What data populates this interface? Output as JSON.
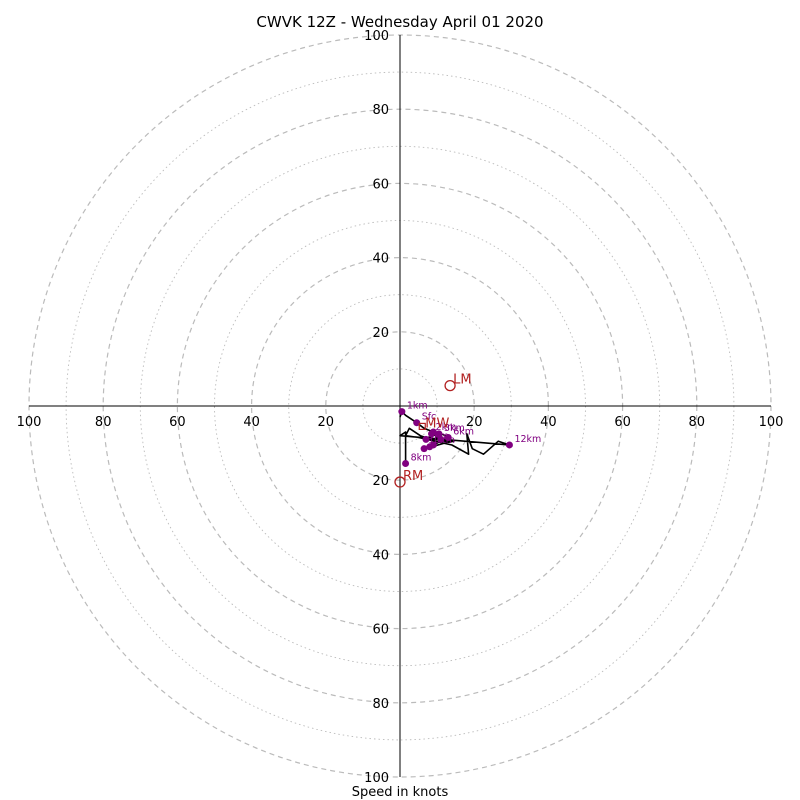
{
  "chart_data": {
    "type": "scatter",
    "title": "CWVK 12Z - Wednesday April 01 2020",
    "xlabel": "Speed in knots",
    "ylabel": "",
    "xlim": [
      -100,
      100
    ],
    "ylim": [
      -100,
      100
    ],
    "grid": "dashed rings every 20 knots, dotted rings at 10-knot midpoints",
    "axis_ticks": {
      "left": [
        "100",
        "80",
        "60",
        "40",
        "20"
      ],
      "right": [
        "20",
        "40",
        "60",
        "80",
        "100"
      ],
      "top": [
        "20",
        "40",
        "60",
        "80",
        "100"
      ],
      "bottom": [
        "20",
        "40",
        "60",
        "80",
        "100"
      ]
    },
    "hodograph": [
      {
        "u": 0.0,
        "v": -3.0
      },
      {
        "u": 0.5,
        "v": -1.5
      },
      {
        "u": 1.5,
        "v": -2.5
      },
      {
        "u": 4.5,
        "v": -4.5
      },
      {
        "u": 6.5,
        "v": -6.0
      },
      {
        "u": 9.0,
        "v": -7.0
      },
      {
        "u": 10.5,
        "v": -7.5
      },
      {
        "u": 7.5,
        "v": -8.5
      },
      {
        "u": 9.0,
        "v": -9.5
      },
      {
        "u": 11.0,
        "v": -7.5
      },
      {
        "u": 13.5,
        "v": -8.5
      },
      {
        "u": 11.0,
        "v": -9.5
      },
      {
        "u": 9.0,
        "v": -10.5
      },
      {
        "u": 7.5,
        "v": -11.0
      },
      {
        "u": 6.5,
        "v": -11.5
      },
      {
        "u": 8.5,
        "v": -11.0
      },
      {
        "u": 12.0,
        "v": -10.0
      },
      {
        "u": 14.5,
        "v": -9.5
      },
      {
        "u": 10.0,
        "v": -9.5
      },
      {
        "u": 5.5,
        "v": -8.0
      },
      {
        "u": 2.5,
        "v": -6.0
      },
      {
        "u": 1.5,
        "v": -8.0
      },
      {
        "u": 5.0,
        "v": -8.5
      },
      {
        "u": 14.0,
        "v": -10.5
      },
      {
        "u": 18.5,
        "v": -13.0
      },
      {
        "u": 18.0,
        "v": -7.5
      },
      {
        "u": 19.5,
        "v": -11.5
      },
      {
        "u": 22.5,
        "v": -13.0
      },
      {
        "u": 26.5,
        "v": -9.5
      },
      {
        "u": 29.5,
        "v": -10.5
      },
      {
        "u": 0.0,
        "v": -8.0
      },
      {
        "u": 1.5,
        "v": -7.0
      },
      {
        "u": 1.5,
        "v": -15.5
      }
    ],
    "levels": [
      {
        "label": "Sfc",
        "u": 4.5,
        "v": -4.5
      },
      {
        "label": "1km",
        "u": 0.5,
        "v": -1.5
      },
      {
        "label": "3km",
        "u": 10.5,
        "v": -7.5
      },
      {
        "label": "",
        "u": 9.0,
        "v": -7.0
      },
      {
        "label": "",
        "u": 8.5,
        "v": -7.5
      },
      {
        "label": "",
        "u": 11.0,
        "v": -9.0
      },
      {
        "label": "",
        "u": 9.0,
        "v": -10.5
      },
      {
        "label": "",
        "u": 8.0,
        "v": -11.0
      },
      {
        "label": "",
        "u": 6.5,
        "v": -11.5
      },
      {
        "label": "",
        "u": 7.0,
        "v": -9.0
      },
      {
        "label": "6km",
        "u": 13.0,
        "v": -8.5
      },
      {
        "label": "12km",
        "u": 29.5,
        "v": -10.5
      },
      {
        "label": "8km",
        "u": 1.5,
        "v": -15.5
      }
    ],
    "labels_extra": [
      {
        "label": "2km",
        "u": 8.5,
        "v": -7.0
      },
      {
        "label": "9km",
        "u": 6.5,
        "v": -9.5
      },
      {
        "label": "10km",
        "u": 6.5,
        "v": -10.5
      }
    ],
    "motion_markers": [
      {
        "label": "LM",
        "u": 13.5,
        "v": 5.5
      },
      {
        "label": "RM",
        "u": 0.0,
        "v": -20.5
      },
      {
        "label": "MW",
        "u": 6.0,
        "v": -5.5
      }
    ],
    "colors": {
      "hodograph_line": "#000000",
      "level_points": "#800080",
      "motion": "#b22222",
      "grid": "#bbbbbb"
    }
  }
}
